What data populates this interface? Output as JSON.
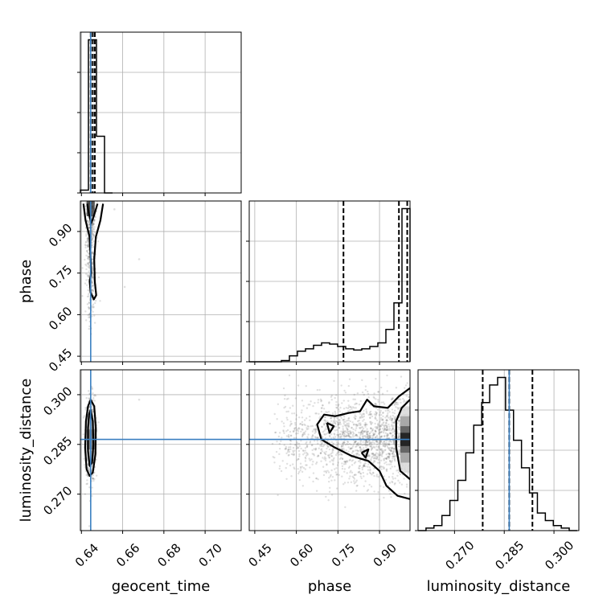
{
  "chart_data": {
    "type": "corner",
    "parameters": [
      "geocent_time",
      "phase",
      "luminosity_distance"
    ],
    "truths": {
      "geocent_time": 0.6445,
      "phase": null,
      "luminosity_distance": 0.2865
    },
    "ranges": {
      "geocent_time": [
        0.6395,
        0.7175
      ],
      "phase": [
        0.43,
        1.01
      ],
      "luminosity_distance": [
        0.259,
        0.3075
      ]
    },
    "ticks": {
      "geocent_time": [
        "0.64",
        "0.66",
        "0.68",
        "0.70"
      ],
      "phase": [
        "0.45",
        "0.60",
        "0.75",
        "0.90"
      ],
      "luminosity_distance": [
        "0.270",
        "0.285",
        "0.300"
      ]
    },
    "tick_values": {
      "geocent_time": [
        0.64,
        0.66,
        0.68,
        0.7
      ],
      "phase": [
        0.45,
        0.6,
        0.75,
        0.9
      ],
      "luminosity_distance": [
        0.27,
        0.285,
        0.3
      ]
    },
    "quantiles": {
      "geocent_time": [
        0.6445,
        0.6455,
        0.6465
      ],
      "phase": [
        0.77,
        0.97,
        1.0
      ],
      "luminosity_distance": [
        0.2785,
        0.2865,
        0.2935
      ]
    },
    "histograms": {
      "geocent_time": {
        "edges": [
          0.6395,
          0.6434,
          0.6473,
          0.6512,
          0.6551
        ],
        "counts": [
          0.05,
          2.7,
          1.0,
          0.0
        ]
      },
      "phase": {
        "edges": [
          0.43,
          0.459,
          0.488,
          0.517,
          0.546,
          0.575,
          0.604,
          0.633,
          0.662,
          0.691,
          0.72,
          0.749,
          0.778,
          0.807,
          0.836,
          0.865,
          0.894,
          0.923,
          0.952,
          0.981,
          1.01
        ],
        "counts": [
          0.0,
          0.0,
          0.0,
          0.0,
          0.02,
          0.1,
          0.18,
          0.22,
          0.28,
          0.32,
          0.3,
          0.26,
          0.22,
          0.2,
          0.22,
          0.26,
          0.32,
          0.55,
          1.0,
          2.6
        ]
      },
      "luminosity_distance": {
        "edges": [
          0.259,
          0.2614,
          0.2638,
          0.2662,
          0.2686,
          0.271,
          0.2734,
          0.2758,
          0.2782,
          0.2806,
          0.283,
          0.2854,
          0.2878,
          0.2902,
          0.2926,
          0.295,
          0.2974,
          0.2998,
          0.3022,
          0.3046,
          0.307
        ],
        "counts": [
          0.0,
          0.05,
          0.1,
          0.3,
          0.6,
          1.0,
          1.55,
          2.1,
          2.55,
          2.9,
          3.05,
          2.4,
          1.8,
          1.25,
          0.75,
          0.35,
          0.2,
          0.1,
          0.05,
          0.0
        ]
      }
    },
    "scatter": {
      "phase|geocent_time": {
        "x_center": 0.6445,
        "x_sd": 0.0012,
        "y_range": [
          0.5,
          1.01
        ],
        "n": 500
      },
      "luminosity_distance|geocent_time": {
        "x_center": 0.6445,
        "x_sd": 0.0012,
        "y_center": 0.2865,
        "y_sd": 0.0065,
        "n": 550
      },
      "luminosity_distance|phase": {
        "x_range": [
          0.5,
          1.01
        ],
        "y_center": 0.2865,
        "y_sd": 0.0065,
        "n": 1800
      }
    },
    "contours": {
      "phase|geocent_time": [
        [
          [
            0.641,
            1.0
          ],
          [
            0.642,
            0.94
          ],
          [
            0.644,
            0.88
          ],
          [
            0.6445,
            0.8
          ],
          [
            0.6448,
            0.75
          ],
          [
            0.644,
            0.72
          ],
          [
            0.6445,
            0.68
          ],
          [
            0.646,
            0.655
          ],
          [
            0.6472,
            0.67
          ],
          [
            0.6465,
            0.72
          ],
          [
            0.6462,
            0.8
          ],
          [
            0.647,
            0.88
          ],
          [
            0.6492,
            0.94
          ],
          [
            0.6505,
            1.0
          ]
        ],
        [
          [
            0.6428,
            1.0
          ],
          [
            0.6437,
            0.96
          ],
          [
            0.6448,
            0.93
          ],
          [
            0.6462,
            0.96
          ],
          [
            0.6478,
            1.0
          ]
        ]
      ],
      "luminosity_distance|geocent_time": [
        [
          [
            0.6445,
            0.2985
          ],
          [
            0.6462,
            0.2965
          ],
          [
            0.647,
            0.29
          ],
          [
            0.6468,
            0.282
          ],
          [
            0.6455,
            0.2765
          ],
          [
            0.644,
            0.2755
          ],
          [
            0.6425,
            0.2775
          ],
          [
            0.6418,
            0.284
          ],
          [
            0.6422,
            0.292
          ],
          [
            0.6432,
            0.2965
          ],
          [
            0.6445,
            0.2985
          ]
        ],
        [
          [
            0.6445,
            0.2955
          ],
          [
            0.6455,
            0.292
          ],
          [
            0.6458,
            0.285
          ],
          [
            0.6452,
            0.2795
          ],
          [
            0.644,
            0.2785
          ],
          [
            0.6432,
            0.283
          ],
          [
            0.6432,
            0.29
          ],
          [
            0.6437,
            0.294
          ],
          [
            0.6445,
            0.2955
          ]
        ]
      ],
      "luminosity_distance|phase": [
        [
          [
            1.01,
            0.302
          ],
          [
            0.97,
            0.2995
          ],
          [
            0.93,
            0.296
          ],
          [
            0.88,
            0.2965
          ],
          [
            0.855,
            0.2985
          ],
          [
            0.83,
            0.295
          ],
          [
            0.79,
            0.2945
          ],
          [
            0.74,
            0.2935
          ],
          [
            0.7,
            0.294
          ],
          [
            0.675,
            0.291
          ],
          [
            0.69,
            0.2865
          ],
          [
            0.74,
            0.284
          ],
          [
            0.8,
            0.2815
          ],
          [
            0.86,
            0.28
          ],
          [
            0.9,
            0.277
          ],
          [
            0.925,
            0.2725
          ],
          [
            0.965,
            0.2695
          ],
          [
            1.01,
            0.2685
          ]
        ],
        [
          [
            1.01,
            0.2985
          ],
          [
            0.98,
            0.296
          ],
          [
            0.96,
            0.292
          ],
          [
            0.96,
            0.284
          ],
          [
            0.975,
            0.277
          ],
          [
            1.01,
            0.2745
          ]
        ],
        [
          [
            0.71,
            0.2915
          ],
          [
            0.72,
            0.2885
          ],
          [
            0.735,
            0.2905
          ],
          [
            0.71,
            0.2915
          ]
        ],
        [
          [
            0.835,
            0.2825
          ],
          [
            0.85,
            0.281
          ],
          [
            0.86,
            0.2835
          ],
          [
            0.835,
            0.2825
          ]
        ]
      ]
    },
    "hotspot": {
      "luminosity_distance|phase": {
        "x": [
          0.975,
          1.01
        ],
        "y_center": 0.2865,
        "y_sd": 0.004
      },
      "luminosity_distance|geocent_time": {
        "x_center": 0.6445,
        "y_center": 0.2865
      },
      "phase|geocent_time": {
        "x_center": 0.6445,
        "y": [
          0.955,
          1.01
        ]
      }
    },
    "grid": true
  }
}
